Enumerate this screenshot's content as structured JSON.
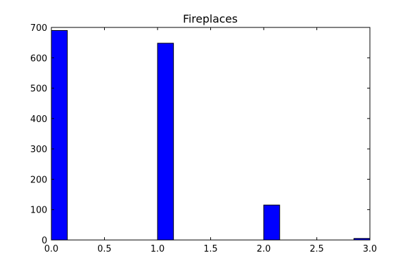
{
  "chart_data": {
    "type": "bar",
    "title": "Fireplaces",
    "xlabel": "",
    "ylabel": "",
    "xlim": [
      0.0,
      3.0
    ],
    "ylim": [
      0,
      700
    ],
    "xticks": [
      0.0,
      0.5,
      1.0,
      1.5,
      2.0,
      2.5,
      3.0
    ],
    "xtick_labels": [
      "0.0",
      "0.5",
      "1.0",
      "1.5",
      "2.0",
      "2.5",
      "3.0"
    ],
    "yticks": [
      0,
      100,
      200,
      300,
      400,
      500,
      600,
      700
    ],
    "ytick_labels": [
      "0",
      "100",
      "200",
      "300",
      "400",
      "500",
      "600",
      "700"
    ],
    "bins": [
      {
        "x_start": 0.0,
        "x_end": 0.15,
        "value": 690
      },
      {
        "x_start": 1.0,
        "x_end": 1.15,
        "value": 648
      },
      {
        "x_start": 2.0,
        "x_end": 2.15,
        "value": 115
      },
      {
        "x_start": 2.85,
        "x_end": 3.0,
        "value": 5
      }
    ],
    "grid": false,
    "colors": {
      "bar_fill": "#0000ff",
      "bar_edge": "#000000",
      "axes": "#000000",
      "background": "#ffffff"
    }
  }
}
